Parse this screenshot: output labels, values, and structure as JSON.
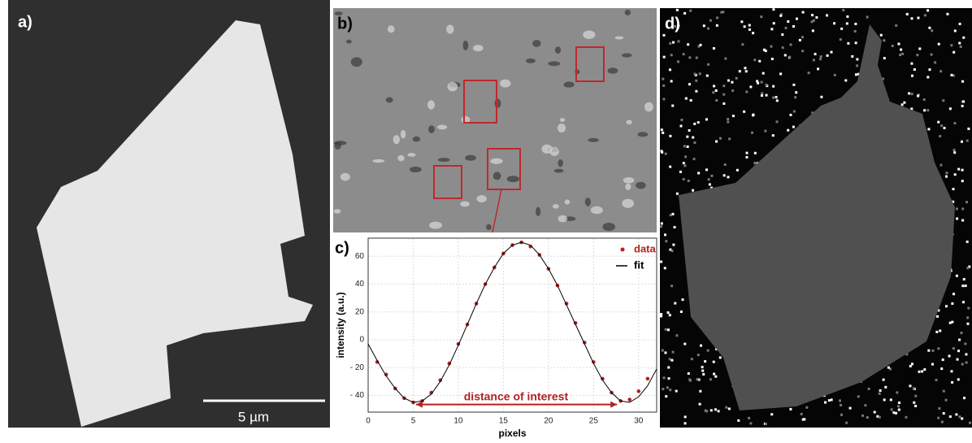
{
  "panels": {
    "a": "a)",
    "b": "b)",
    "c": "c)",
    "d": "d)"
  },
  "scale_bar": "5 µm",
  "chart_data": {
    "type": "line",
    "xlabel": "pixels",
    "ylabel": "intensity (a.u.)",
    "annotation": "distance of interest",
    "xlim": [
      0,
      32
    ],
    "ylim": [
      -52,
      73
    ],
    "xticks": [
      0,
      5,
      10,
      15,
      20,
      25,
      30
    ],
    "yticks": [
      {
        "value": -40,
        "label": "- 40"
      },
      {
        "value": -20,
        "label": "- 20"
      },
      0,
      20,
      40,
      60
    ],
    "grid": true,
    "legend": "upper right",
    "series": [
      {
        "name": "data",
        "color": "#b22222",
        "marker": "dot",
        "x": [
          1,
          2,
          3,
          4,
          5,
          6,
          7,
          8,
          9,
          10,
          11,
          12,
          13,
          14,
          15,
          16,
          17,
          18,
          19,
          20,
          21,
          22,
          23,
          24,
          25,
          26,
          27,
          28,
          29,
          30,
          31
        ],
        "values": [
          -16,
          -25,
          -35,
          -42,
          -45,
          -44,
          -38,
          -29,
          -17,
          -3,
          11,
          26,
          40,
          52,
          62,
          68,
          70,
          67,
          61,
          51,
          39,
          26,
          12,
          -2,
          -16,
          -28,
          -38,
          -44,
          -43,
          -37,
          -28
        ]
      },
      {
        "name": "fit",
        "color": "#000000",
        "marker": "line",
        "x": [
          0,
          1,
          2,
          3,
          4,
          5,
          6,
          7,
          8,
          9,
          10,
          11,
          12,
          13,
          14,
          15,
          16,
          17,
          18,
          19,
          20,
          21,
          22,
          23,
          24,
          25,
          26,
          27,
          28,
          29,
          30,
          31,
          32
        ],
        "values": [
          -3,
          -15,
          -26,
          -35,
          -42,
          -45,
          -44,
          -39,
          -30,
          -18,
          -4,
          11,
          26,
          40,
          52,
          62,
          68,
          70,
          68,
          61,
          51,
          39,
          25,
          11,
          -3,
          -17,
          -29,
          -38,
          -44,
          -45,
          -41,
          -33,
          -21
        ]
      }
    ]
  }
}
